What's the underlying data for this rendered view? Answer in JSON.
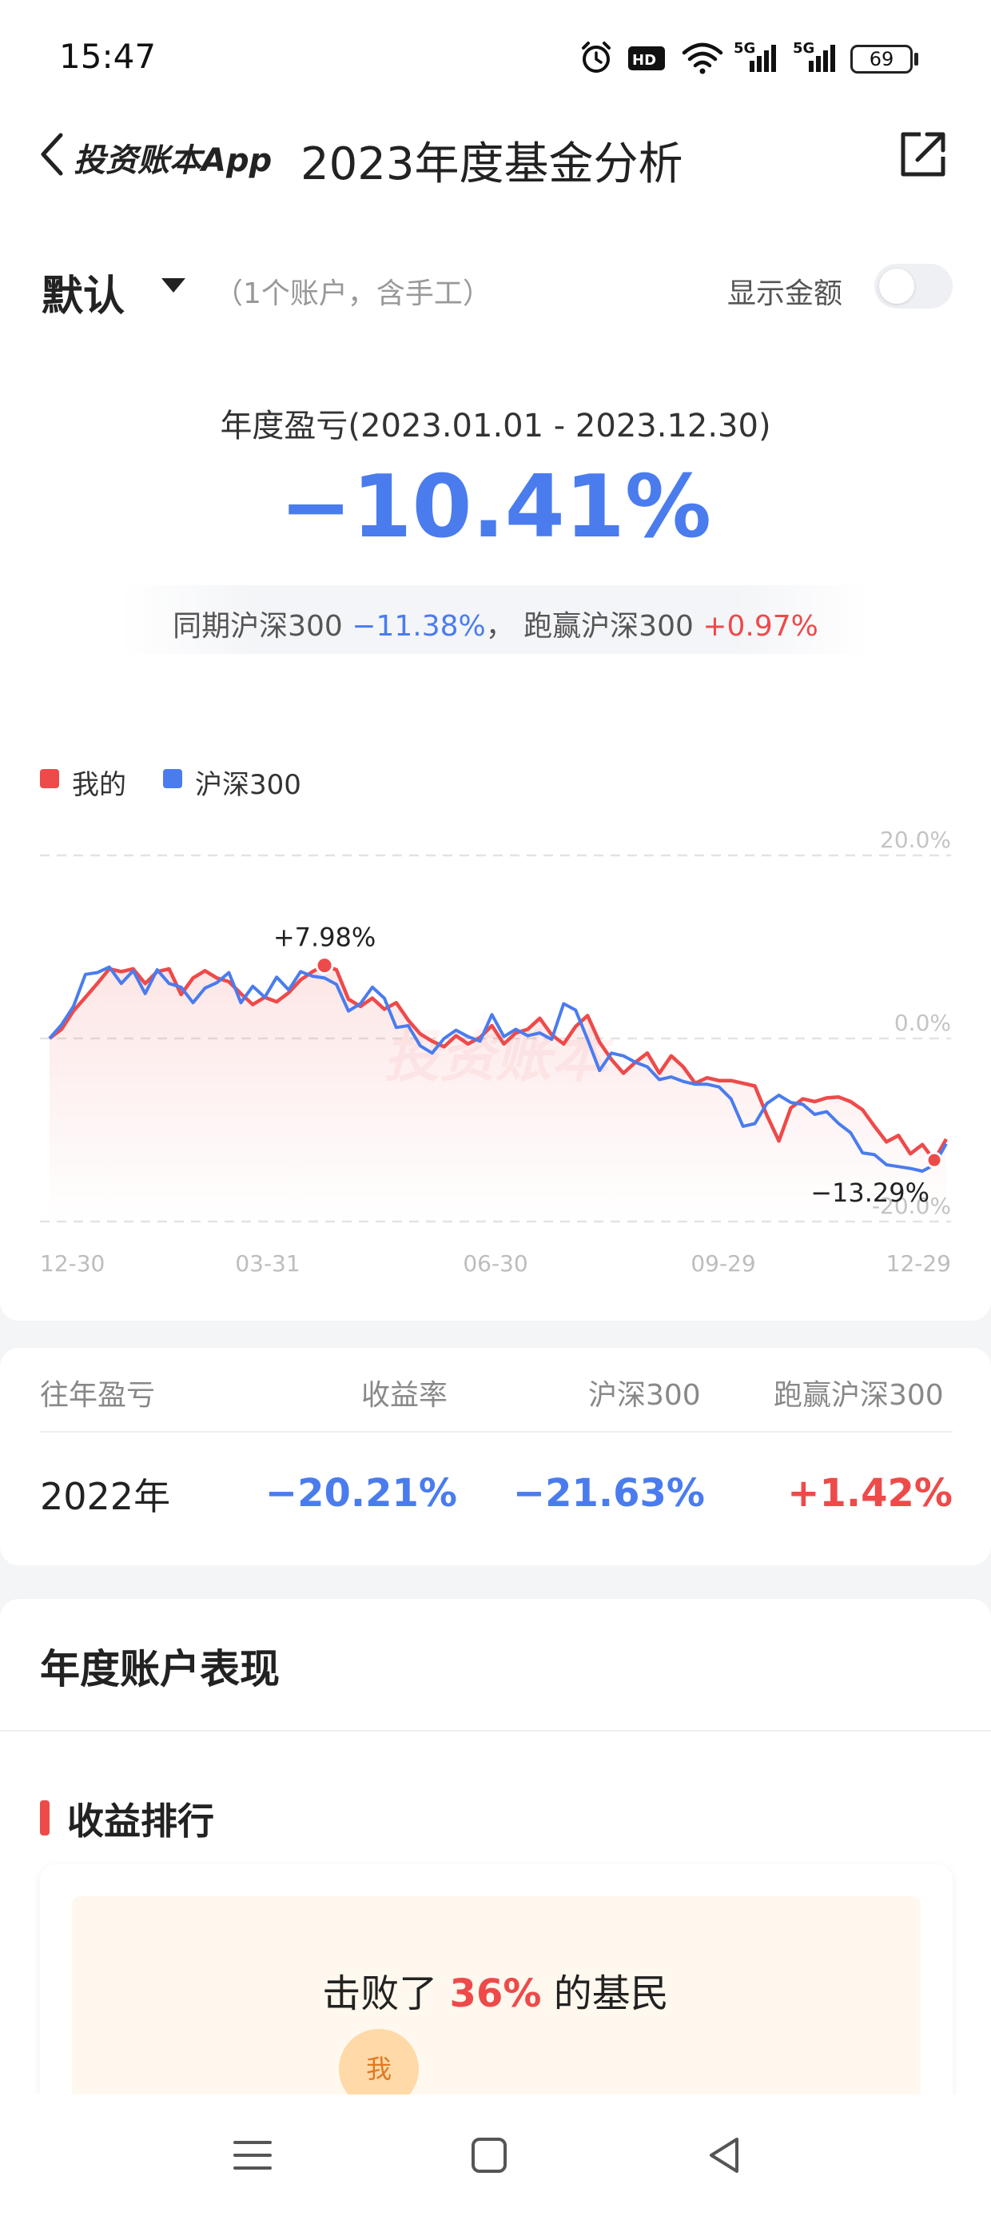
{
  "status_bar": {
    "time": "15:47",
    "battery": "69",
    "net1": "5G",
    "net2": "5G"
  },
  "header": {
    "app_name": "投资账本App",
    "title": "2023年度基金分析"
  },
  "account": {
    "name": "默认",
    "note": "（1个账户，含手工）",
    "show_amount_label": "显示金额",
    "show_amount_on": false
  },
  "summary": {
    "period_label": "年度盈亏(2023.01.01 - 2023.12.30)",
    "return_pct": "−10.41%",
    "compare_prefix": "同期沪深300 ",
    "index_return": "−11.38%",
    "compare_mid": "， 跑赢沪深300 ",
    "excess_return": "+0.97%"
  },
  "colors": {
    "mine": "#ee4a4a",
    "index": "#4a7cee"
  },
  "chart_data": {
    "type": "line",
    "x_ticks": [
      "12-30",
      "03-31",
      "06-30",
      "09-29",
      "12-29"
    ],
    "y_ticks": [
      "20.0%",
      "0.0%",
      "-20.0%"
    ],
    "ylim": [
      -20,
      20
    ],
    "legend": [
      "我的",
      "沪深300"
    ],
    "legend_position": "top-left",
    "annotations": [
      {
        "label": "+7.98%",
        "series": "我的",
        "type": "max"
      },
      {
        "label": "−13.29%",
        "series": "我的",
        "type": "min"
      }
    ],
    "watermark": "投资账本",
    "series": [
      {
        "name": "我的",
        "color": "#ee4a4a",
        "values": [
          0,
          1,
          3,
          4.5,
          6,
          7.6,
          7.3,
          7.6,
          6,
          7.3,
          7.6,
          4.8,
          6.6,
          7.4,
          6.6,
          6.2,
          4.9,
          3.7,
          4.5,
          4,
          5,
          6.4,
          7.3,
          7.98,
          7.5,
          4.3,
          3.5,
          4.4,
          3.2,
          3.9,
          2,
          0.5,
          -0.3,
          -0.9,
          0.3,
          -0.6,
          0.1,
          1.4,
          -0.6,
          0.6,
          1,
          2.2,
          0.4,
          -0.6,
          1.3,
          2.5,
          -0.4,
          -2.3,
          -3.8,
          -2.6,
          -1.6,
          -3.8,
          -1.9,
          -3.1,
          -4.9,
          -4.3,
          -4.6,
          -4.6,
          -4.9,
          -5.2,
          -8.4,
          -11.2,
          -7.6,
          -6.6,
          -6.9,
          -6.5,
          -6.4,
          -6.9,
          -7.8,
          -9.6,
          -11.3,
          -10.6,
          -12.6,
          -11.6,
          -13.29,
          -11
        ]
      },
      {
        "name": "沪深300",
        "color": "#4a7cee",
        "values": [
          0,
          1.5,
          3.5,
          7,
          7.2,
          7.8,
          6,
          7.4,
          4.9,
          7.5,
          6,
          5.6,
          3.9,
          5.5,
          6.1,
          7.2,
          3.9,
          5.7,
          4.5,
          6.7,
          5.3,
          7.3,
          6.8,
          6.6,
          5.9,
          3,
          3.8,
          5.6,
          4.4,
          1.2,
          1.4,
          -0.8,
          -1.6,
          0,
          0.9,
          0.2,
          -0.3,
          2.6,
          0.2,
          1,
          0.3,
          0.6,
          -0.1,
          3.8,
          3.1,
          -0.1,
          -3.5,
          -1.6,
          -1.9,
          -2.6,
          -3.1,
          -4.5,
          -4.2,
          -4.7,
          -5,
          -5,
          -5.3,
          -6.6,
          -9.6,
          -9.3,
          -7.1,
          -6.2,
          -7,
          -7.2,
          -8.3,
          -8,
          -9.3,
          -10.3,
          -12.5,
          -12.7,
          -13.8,
          -14,
          -14.2,
          -14.5,
          -13.8,
          -11.5
        ]
      }
    ]
  },
  "prev_years": {
    "headers": [
      "往年盈亏",
      "收益率",
      "沪深300",
      "跑赢沪深300"
    ],
    "rows": [
      {
        "year": "2022年",
        "return": "−20.21%",
        "index": "−21.63%",
        "excess": "+1.42%"
      }
    ]
  },
  "performance": {
    "title": "年度账户表现",
    "rank_title": "收益排行",
    "beat_prefix": "击败了 ",
    "beat_pct": "36%",
    "beat_suffix": " 的基民",
    "me_badge": "我"
  }
}
